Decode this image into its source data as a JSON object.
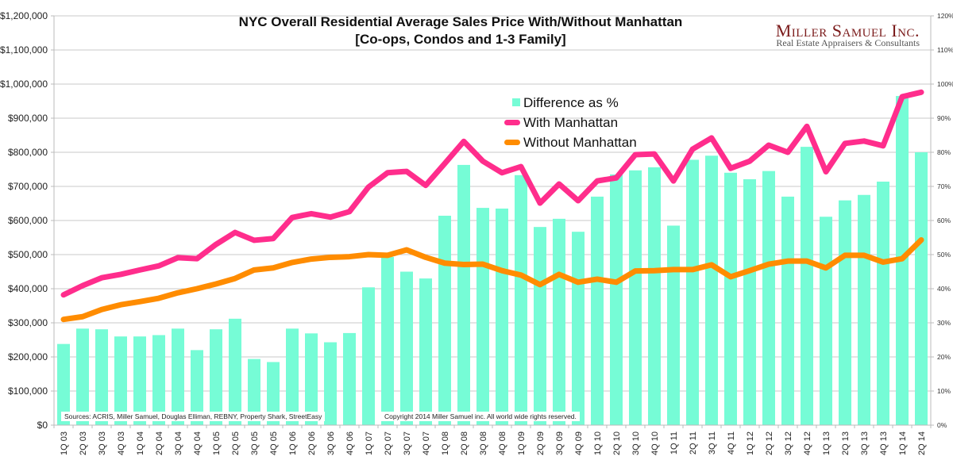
{
  "chart_data": {
    "type": "bar+line",
    "title": "NYC Overall Residential Average Sales Price With/Without Manhattan",
    "subtitle": "[Co-ops, Condos and 1-3 Family]",
    "categories": [
      "1Q 03",
      "2Q 03",
      "3Q 03",
      "4Q 03",
      "1Q 04",
      "2Q 04",
      "3Q 04",
      "4Q 04",
      "1Q 05",
      "2Q 05",
      "3Q 05",
      "4Q 05",
      "1Q 06",
      "2Q 06",
      "3Q 06",
      "4Q 06",
      "1Q 07",
      "2Q 07",
      "3Q 07",
      "4Q 07",
      "1Q 08",
      "2Q 08",
      "3Q 08",
      "4Q 08",
      "1Q 09",
      "2Q 09",
      "3Q 09",
      "4Q 09",
      "1Q 10",
      "2Q 10",
      "3Q 10",
      "4Q 10",
      "1Q 11",
      "2Q 11",
      "3Q 11",
      "4Q 11",
      "1Q 12",
      "2Q 12",
      "3Q 12",
      "4Q 12",
      "1Q 13",
      "2Q 13",
      "3Q 13",
      "4Q 13",
      "1Q 14",
      "2Q 14"
    ],
    "series": [
      {
        "name": "Difference as %",
        "kind": "bar",
        "axis": "right",
        "color": "#76FCD6",
        "values": [
          23.8,
          28.3,
          28.1,
          26.0,
          26.0,
          26.4,
          28.3,
          22.0,
          28.1,
          31.2,
          19.4,
          18.5,
          28.3,
          26.9,
          24.3,
          27.0,
          40.4,
          49.3,
          45.0,
          43.0,
          61.4,
          76.3,
          63.7,
          63.5,
          73.3,
          58.1,
          60.5,
          56.7,
          67.0,
          73.5,
          74.7,
          75.6,
          58.5,
          77.8,
          79.0,
          74.0,
          72.1,
          74.5,
          67.0,
          81.6,
          61.1,
          65.9,
          67.5,
          71.4,
          96.5,
          80.0
        ]
      },
      {
        "name": "With Manhattan",
        "kind": "line",
        "axis": "left",
        "color": "#FF2D8C",
        "values": [
          382000,
          409000,
          432000,
          442000,
          455000,
          467000,
          491000,
          488000,
          530000,
          565000,
          542000,
          547000,
          609000,
          620000,
          610000,
          626000,
          698000,
          740000,
          744000,
          703000,
          767000,
          832000,
          774000,
          740000,
          758000,
          651000,
          707000,
          658000,
          716000,
          725000,
          793000,
          795000,
          716000,
          809000,
          842000,
          753000,
          774000,
          821000,
          800000,
          876000,
          743000,
          826000,
          833000,
          819000,
          963000,
          976000
        ]
      },
      {
        "name": "Without Manhattan",
        "kind": "line",
        "axis": "left",
        "color": "#FF8C00",
        "values": [
          310000,
          318000,
          339000,
          353000,
          362000,
          372000,
          388000,
          400000,
          414000,
          430000,
          455000,
          461000,
          477000,
          487000,
          492000,
          494000,
          500000,
          498000,
          514000,
          492000,
          475000,
          471000,
          472000,
          453000,
          440000,
          412000,
          442000,
          419000,
          428000,
          419000,
          452000,
          453000,
          456000,
          456000,
          470000,
          435000,
          453000,
          472000,
          481000,
          481000,
          461000,
          498000,
          498000,
          478000,
          488000,
          543000
        ]
      }
    ],
    "left_axis": {
      "ylim": [
        0,
        1200000
      ],
      "ticks": [
        0,
        100000,
        200000,
        300000,
        400000,
        500000,
        600000,
        700000,
        800000,
        900000,
        1000000,
        1100000,
        1200000
      ],
      "tick_labels": [
        "$0",
        "$100,000",
        "$200,000",
        "$300,000",
        "$400,000",
        "$500,000",
        "$600,000",
        "$700,000",
        "$800,000",
        "$900,000",
        "$1,000,000",
        "$1,100,000",
        "$1,200,000"
      ]
    },
    "right_axis": {
      "ylim": [
        0,
        120
      ],
      "ticks": [
        0,
        10,
        20,
        30,
        40,
        50,
        60,
        70,
        80,
        90,
        100,
        110,
        120
      ],
      "tick_labels": [
        "0%",
        "10%",
        "20%",
        "30%",
        "40%",
        "50%",
        "60%",
        "70%",
        "80%",
        "90%",
        "100%",
        "110%",
        "120%"
      ]
    },
    "grid": true,
    "legend": {
      "placement": "top-center-right",
      "entries": [
        "Difference as %",
        "With Manhattan",
        "Without Manhattan"
      ]
    },
    "annotations": [
      "Sources: ACRIS, Miller Samuel, Douglas Elliman, REBNY, Property Shark, StreetEasy",
      "Copyright 2014 Miller Samuel inc.  All world wide rights reserved."
    ]
  },
  "header": {
    "title_line1": "NYC Overall Residential Average Sales Price With/Without Manhattan",
    "title_line2": "[Co-ops, Condos and 1-3 Family]"
  },
  "logo": {
    "name": "Miller Samuel Inc.",
    "tagline": "Real Estate Appraisers & Consultants",
    "color": "#7A1A1A"
  },
  "legend": {
    "items": [
      {
        "label": "Difference as %",
        "color": "#76FCD6"
      },
      {
        "label": "With Manhattan",
        "color": "#FF2D8C"
      },
      {
        "label": "Without Manhattan",
        "color": "#FF8C00"
      }
    ]
  },
  "notes": {
    "sources": "Sources: ACRIS, Miller Samuel, Douglas Elliman, REBNY, Property Shark, StreetEasy",
    "copyright": "Copyright 2014 Miller Samuel inc.  All world wide rights reserved."
  }
}
